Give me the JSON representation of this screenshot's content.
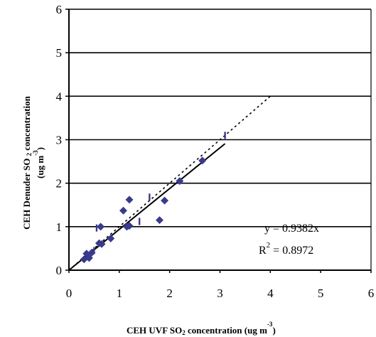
{
  "chart_data": {
    "type": "scatter",
    "xlabel": {
      "main": "CEH UVF SO",
      "sub": "2",
      "tail": " concentration (ug m",
      "sup": "-3",
      "close": ")"
    },
    "ylabel": {
      "main": "CEH Denuder SO ",
      "sub": "2",
      "tail": " concentration",
      "line2": "(ug m",
      "sup": "-3",
      "close": ")"
    },
    "xlim": [
      0,
      6
    ],
    "ylim": [
      0,
      6
    ],
    "xticks": [
      "0",
      "1",
      "2",
      "3",
      "4",
      "5",
      "6"
    ],
    "yticks": [
      "0",
      "1",
      "2",
      "3",
      "4",
      "5",
      "6"
    ],
    "grid": {
      "horizontal": true,
      "vertical": false
    },
    "series": [
      {
        "marker": "diamond",
        "color": "#3a3a8c",
        "x": [
          0.3,
          0.35,
          0.4,
          0.45,
          0.6,
          0.65,
          0.63,
          0.83,
          1.08,
          1.15,
          1.2,
          1.2,
          1.8,
          1.9,
          2.2,
          2.65
        ],
        "y": [
          0.25,
          0.38,
          0.28,
          0.4,
          0.62,
          0.6,
          1.0,
          0.73,
          1.37,
          1.0,
          1.02,
          1.62,
          1.15,
          1.6,
          2.05,
          2.52
        ]
      },
      {
        "marker": "vertical-dash",
        "color": "#3a3a8c",
        "x": [
          0.5,
          0.55,
          1.4,
          1.6,
          3.1
        ],
        "y": [
          0.45,
          0.97,
          1.12,
          1.68,
          3.1
        ]
      }
    ],
    "fit_line": {
      "style": "solid",
      "slope": 0.9382,
      "x_range": [
        0,
        3.1
      ]
    },
    "dotted_line": {
      "style": "dotted",
      "slope": 1.0,
      "x_range": [
        0,
        4.0
      ]
    },
    "annotations": {
      "equation": "y = 0.9382x",
      "r2_prefix": "R",
      "r2_sup": "2",
      "r2_value": " = 0.8972"
    }
  }
}
